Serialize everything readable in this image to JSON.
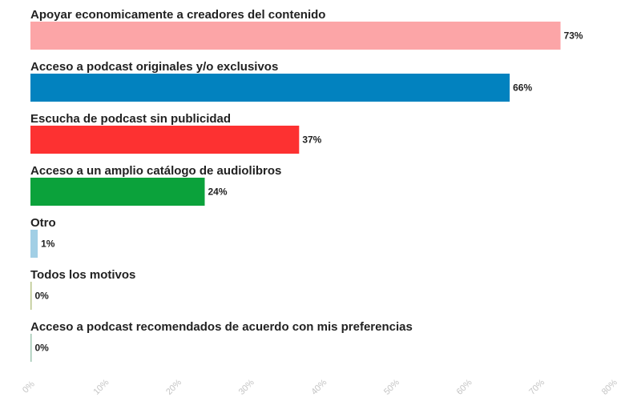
{
  "chart_data": {
    "type": "bar",
    "orientation": "horizontal",
    "categories": [
      "Apoyar economicamente a creadores del contenido",
      "Acceso a podcast originales y/o exclusivos",
      "Escucha de podcast sin publicidad",
      "Acceso a un amplio catálogo de audiolibros",
      "Otro",
      "Todos los motivos",
      "Acceso a podcast recomendados de acuerdo con mis preferencias"
    ],
    "values": [
      73,
      66,
      37,
      24,
      1,
      0,
      0
    ],
    "value_labels": [
      "73%",
      "66%",
      "37%",
      "24%",
      "1%",
      "0%",
      "0%"
    ],
    "colors": [
      "#fca5a7",
      "#0282bf",
      "#fd3131",
      "#0ba23b",
      "#a2cfe5",
      "#b8c48a",
      "#9fc7b2"
    ],
    "xlim": [
      0,
      80
    ],
    "xticks": [
      0,
      10,
      20,
      30,
      40,
      50,
      60,
      70,
      80
    ],
    "xtick_labels": [
      "0%",
      "10%",
      "20%",
      "30%",
      "40%",
      "50%",
      "60%",
      "70%",
      "80%"
    ],
    "title": "",
    "xlabel": "",
    "ylabel": "",
    "grid": false,
    "legend": "none"
  }
}
